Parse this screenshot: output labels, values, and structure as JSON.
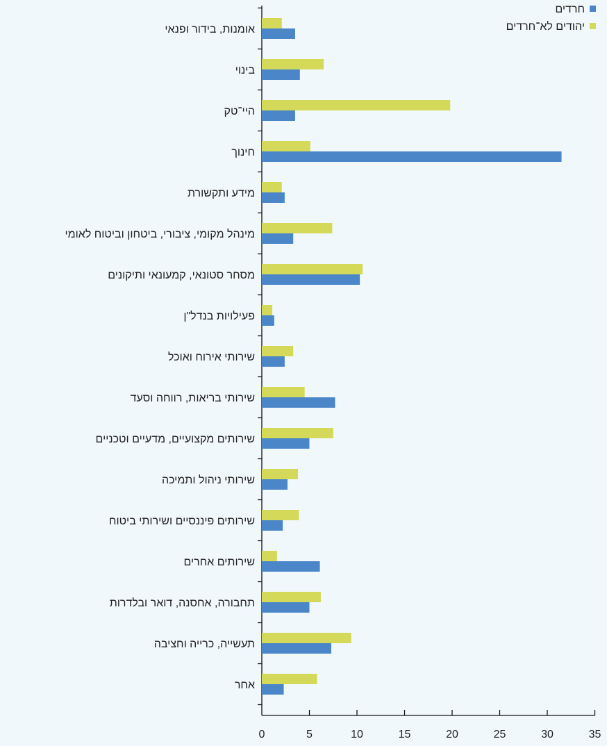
{
  "colors": {
    "background": "#f1f8fb",
    "haredi": "#4a86c8",
    "non_haredi": "#d4d95a"
  },
  "chart_data": {
    "type": "bar",
    "orientation": "horizontal",
    "categories": [
      "אומנות, בידור ופנאי",
      "בינוי",
      "היי־טק",
      "חינוך",
      "מידע ותקשורת",
      "מינהל מקומי, ציבורי, ביטחון וביטוח לאומי",
      "מסחר סטונאי, קמעונאי ותיקונים",
      "פעילויות בנדל\"ן",
      "שירותי אירוח ואוכל",
      "שירותי בריאות, רווחה וסעד",
      "שירותים מקצועיים, מדעיים וטכניים",
      "שירותי ניהול ותמיכה",
      "שירותים פיננסיים ושירותי ביטוח",
      "שירותים אחרים",
      "תחבורה, אחסנה, דואר ובלדרות",
      "תעשייה, כרייה וחציבה",
      "אחר"
    ],
    "series": [
      {
        "name": "חרדים",
        "color": "#4a86c8",
        "values": [
          3.5,
          4.0,
          3.5,
          31.5,
          2.4,
          3.3,
          10.3,
          1.3,
          2.4,
          7.7,
          5.0,
          2.7,
          2.2,
          6.1,
          5.0,
          7.3,
          2.3
        ]
      },
      {
        "name": "יהודים לא־חרדים",
        "color": "#d4d95a",
        "values": [
          2.1,
          6.5,
          19.8,
          5.1,
          2.1,
          7.4,
          10.6,
          1.1,
          3.3,
          4.5,
          7.5,
          3.8,
          3.9,
          1.6,
          6.2,
          9.4,
          5.8
        ]
      }
    ],
    "xticks": [
      "0",
      "5",
      "10",
      "15",
      "20",
      "25",
      "30",
      "35"
    ],
    "xlim": [
      0,
      35
    ],
    "grid": false,
    "legend_position": "top-right"
  }
}
